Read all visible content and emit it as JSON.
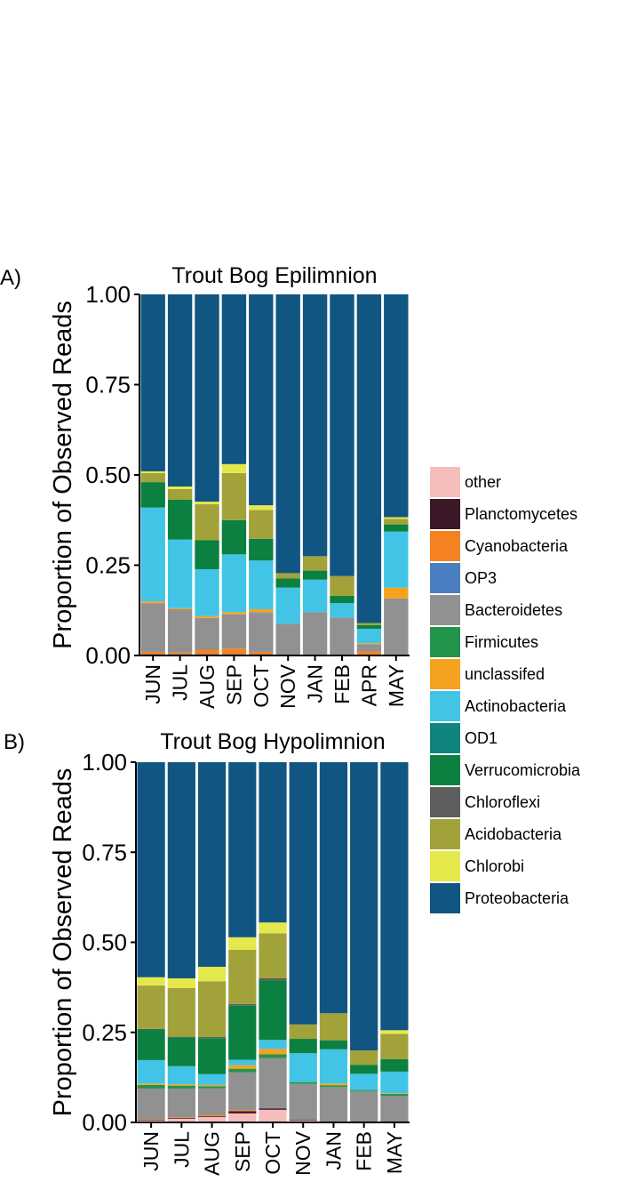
{
  "legend": {
    "items": [
      {
        "label": "other",
        "color": "#f6bdbd"
      },
      {
        "label": "Planctomycetes",
        "color": "#3b1728"
      },
      {
        "label": "Cyanobacteria",
        "color": "#f58220"
      },
      {
        "label": "OP3",
        "color": "#4a7fc1"
      },
      {
        "label": "Bacteroidetes",
        "color": "#919191"
      },
      {
        "label": "Firmicutes",
        "color": "#22954b"
      },
      {
        "label": "unclassifed",
        "color": "#f4a21f"
      },
      {
        "label": "Actinobacteria",
        "color": "#41c4e6"
      },
      {
        "label": "OD1",
        "color": "#10847f"
      },
      {
        "label": "Verrucomicrobia",
        "color": "#0b8040"
      },
      {
        "label": "Chloroflexi",
        "color": "#5e5e5e"
      },
      {
        "label": "Acidobacteria",
        "color": "#a1a33a"
      },
      {
        "label": "Chlorobi",
        "color": "#e5e84b"
      },
      {
        "label": "Proteobacteria",
        "color": "#115583"
      }
    ]
  },
  "chart_data": [
    {
      "type": "bar",
      "stacked": true,
      "panel_label": "A)",
      "title": "Trout Bog Epilimnion",
      "ylabel": "Proportion of Observed Reads",
      "xlabel": "",
      "ylim": [
        0,
        1
      ],
      "yticks": [
        "0.00",
        "0.25",
        "0.50",
        "0.75",
        "1.00"
      ],
      "categories": [
        "JUN",
        "JUL",
        "AUG",
        "SEP",
        "OCT",
        "NOV",
        "JAN",
        "FEB",
        "APR",
        "MAY"
      ],
      "series": [
        {
          "name": "other",
          "values": [
            0.003,
            0.003,
            0.003,
            0.003,
            0.003,
            0.002,
            0.002,
            0.002,
            0.002,
            0.002
          ]
        },
        {
          "name": "Planctomycetes",
          "values": [
            0.001,
            0.001,
            0.001,
            0.001,
            0.001,
            0.001,
            0.001,
            0.001,
            0.001,
            0.001
          ]
        },
        {
          "name": "Cyanobacteria",
          "values": [
            0.006,
            0.004,
            0.012,
            0.015,
            0.006,
            0.0,
            0.0,
            0.0,
            0.008,
            0.0
          ]
        },
        {
          "name": "OP3",
          "values": [
            0.0,
            0.0,
            0.0,
            0.0,
            0.0,
            0.0,
            0.0,
            0.0,
            0.0,
            0.0
          ]
        },
        {
          "name": "Bacteroidetes",
          "values": [
            0.135,
            0.12,
            0.088,
            0.095,
            0.11,
            0.085,
            0.117,
            0.102,
            0.02,
            0.155
          ]
        },
        {
          "name": "Firmicutes",
          "values": [
            0.0,
            0.0,
            0.0,
            0.0,
            0.0,
            0.0,
            0.0,
            0.0,
            0.0,
            0.0
          ]
        },
        {
          "name": "unclassifed",
          "values": [
            0.005,
            0.003,
            0.005,
            0.006,
            0.008,
            0.0,
            0.0,
            0.0,
            0.003,
            0.03
          ]
        },
        {
          "name": "Actinobacteria",
          "values": [
            0.26,
            0.19,
            0.13,
            0.16,
            0.135,
            0.1,
            0.09,
            0.04,
            0.04,
            0.155
          ]
        },
        {
          "name": "OD1",
          "values": [
            0.0,
            0.0,
            0.0,
            0.0,
            0.0,
            0.0,
            0.0,
            0.0,
            0.0,
            0.0
          ]
        },
        {
          "name": "Verrucomicrobia",
          "values": [
            0.07,
            0.11,
            0.08,
            0.095,
            0.06,
            0.025,
            0.025,
            0.02,
            0.01,
            0.02
          ]
        },
        {
          "name": "Chloroflexi",
          "values": [
            0.0,
            0.0,
            0.0,
            0.0,
            0.0,
            0.0,
            0.0,
            0.0,
            0.0,
            0.0
          ]
        },
        {
          "name": "Acidobacteria",
          "values": [
            0.025,
            0.03,
            0.1,
            0.13,
            0.08,
            0.015,
            0.04,
            0.055,
            0.006,
            0.015
          ]
        },
        {
          "name": "Chlorobi",
          "values": [
            0.005,
            0.007,
            0.007,
            0.025,
            0.013,
            0.0,
            0.0,
            0.0,
            0.0,
            0.005
          ]
        },
        {
          "name": "Proteobacteria",
          "values": [
            0.49,
            0.532,
            0.574,
            0.47,
            0.584,
            0.772,
            0.725,
            0.78,
            0.91,
            0.617
          ]
        }
      ]
    },
    {
      "type": "bar",
      "stacked": true,
      "panel_label": "B)",
      "title": "Trout Bog Hypolimnion",
      "ylabel": "Proportion of Observed Reads",
      "xlabel": "",
      "ylim": [
        0,
        1
      ],
      "yticks": [
        "0.00",
        "0.25",
        "0.50",
        "0.75",
        "1.00"
      ],
      "categories": [
        "JUN",
        "JUL",
        "AUG",
        "SEP",
        "OCT",
        "NOV",
        "JAN",
        "FEB",
        "MAY"
      ],
      "series": [
        {
          "name": "other",
          "values": [
            0.005,
            0.01,
            0.015,
            0.025,
            0.035,
            0.005,
            0.002,
            0.002,
            0.003
          ]
        },
        {
          "name": "Planctomycetes",
          "values": [
            0.002,
            0.002,
            0.002,
            0.006,
            0.004,
            0.002,
            0.001,
            0.0,
            0.001
          ]
        },
        {
          "name": "Cyanobacteria",
          "values": [
            0.002,
            0.002,
            0.003,
            0.003,
            0.0,
            0.0,
            0.0,
            0.0,
            0.0
          ]
        },
        {
          "name": "OP3",
          "values": [
            0.0,
            0.0,
            0.0,
            0.0,
            0.0,
            0.0,
            0.0,
            0.0,
            0.0
          ]
        },
        {
          "name": "Bacteroidetes",
          "values": [
            0.085,
            0.08,
            0.075,
            0.105,
            0.14,
            0.1,
            0.095,
            0.085,
            0.07
          ]
        },
        {
          "name": "Firmicutes",
          "values": [
            0.01,
            0.008,
            0.005,
            0.01,
            0.01,
            0.005,
            0.005,
            0.003,
            0.005
          ]
        },
        {
          "name": "unclassifed",
          "values": [
            0.004,
            0.004,
            0.004,
            0.01,
            0.015,
            0.0,
            0.005,
            0.0,
            0.002
          ]
        },
        {
          "name": "Actinobacteria",
          "values": [
            0.065,
            0.05,
            0.03,
            0.015,
            0.025,
            0.08,
            0.095,
            0.045,
            0.06
          ]
        },
        {
          "name": "OD1",
          "values": [
            0.0,
            0.0,
            0.0,
            0.0,
            0.0,
            0.0,
            0.0,
            0.0,
            0.0
          ]
        },
        {
          "name": "Verrucomicrobia",
          "values": [
            0.085,
            0.08,
            0.1,
            0.15,
            0.165,
            0.04,
            0.025,
            0.025,
            0.035
          ]
        },
        {
          "name": "Chloroflexi",
          "values": [
            0.002,
            0.002,
            0.003,
            0.005,
            0.006,
            0.0,
            0.0,
            0.0,
            0.0
          ]
        },
        {
          "name": "Acidobacteria",
          "values": [
            0.12,
            0.135,
            0.155,
            0.15,
            0.125,
            0.04,
            0.075,
            0.04,
            0.07
          ]
        },
        {
          "name": "Chlorobi",
          "values": [
            0.023,
            0.027,
            0.04,
            0.035,
            0.03,
            0.0,
            0.0,
            0.0,
            0.01
          ]
        },
        {
          "name": "Proteobacteria",
          "values": [
            0.597,
            0.6,
            0.568,
            0.486,
            0.445,
            0.728,
            0.697,
            0.8,
            0.744
          ]
        }
      ]
    }
  ]
}
